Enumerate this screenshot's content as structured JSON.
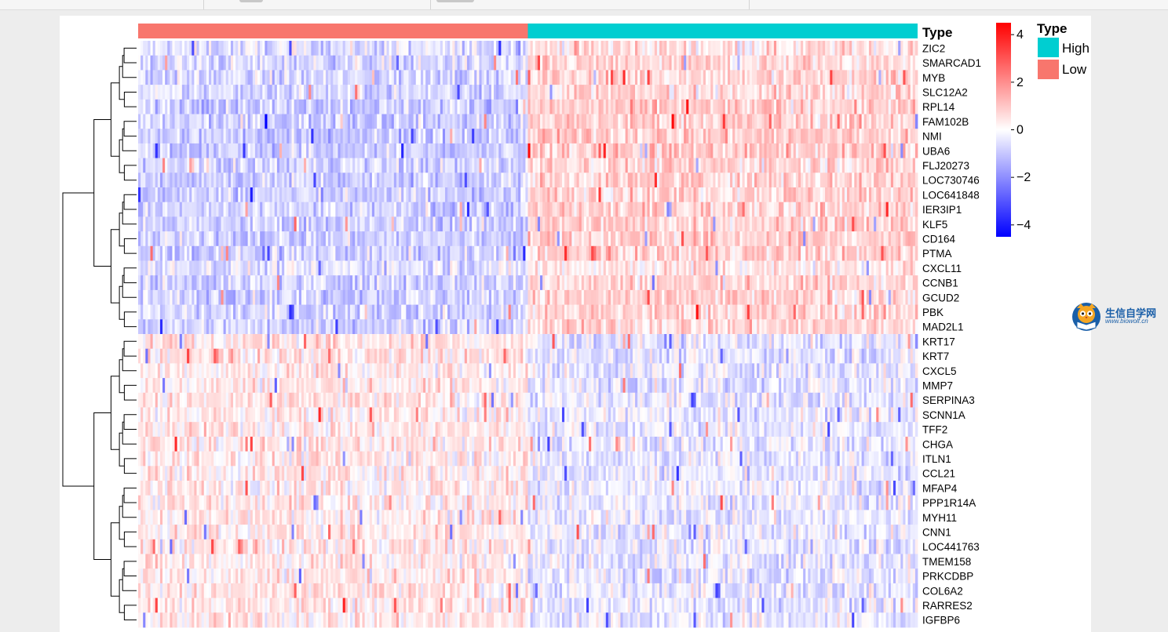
{
  "chart_data": {
    "type": "heatmap",
    "title": "",
    "column_annotation": {
      "title": "Type",
      "groups": [
        {
          "name": "Low",
          "color": "#F8766D",
          "fraction": 0.5
        },
        {
          "name": "High",
          "color": "#00CED1",
          "fraction": 0.5
        }
      ]
    },
    "genes": [
      "ZIC2",
      "SMARCAD1",
      "MYB",
      "SLC12A2",
      "RPL14",
      "FAM102B",
      "NMI",
      "UBA6",
      "FLJ20273",
      "LOC730746",
      "LOC641848",
      "IER3IP1",
      "KLF5",
      "CD164",
      "PTMA",
      "CXCL11",
      "CCNB1",
      "GCUD2",
      "PBK",
      "MAD2L1",
      "KRT17",
      "KRT7",
      "CXCL5",
      "MMP7",
      "SERPINA3",
      "SCNN1A",
      "TFF2",
      "CHGA",
      "ITLN1",
      "CCL21",
      "MFAP4",
      "PPP1R14A",
      "MYH11",
      "CNN1",
      "LOC441763",
      "TMEM158",
      "PRKCDBP",
      "COL6A2",
      "RARRES2",
      "IGFBP6"
    ],
    "row_trend": [
      0.6,
      0.7,
      0.8,
      0.7,
      0.9,
      0.9,
      1.0,
      1.0,
      0.8,
      0.9,
      0.9,
      0.9,
      0.9,
      0.9,
      0.9,
      0.5,
      0.8,
      0.8,
      0.8,
      0.8,
      -0.5,
      -0.5,
      -0.4,
      -0.4,
      -0.4,
      -0.3,
      -0.4,
      -0.4,
      -0.4,
      -0.4,
      -0.4,
      -0.4,
      -0.4,
      -0.4,
      -0.4,
      -0.4,
      -0.4,
      -0.4,
      -0.4,
      -0.4
    ],
    "color_scale": {
      "min": -4.5,
      "max": 4.5,
      "low_color": "#0000FF",
      "mid_color": "#FFFFFF",
      "high_color": "#FF0000",
      "ticks": [
        4,
        2,
        0,
        -2,
        -4
      ],
      "tick_labels": [
        "4",
        "2",
        "0",
        "−2",
        "−4"
      ]
    },
    "dendrogram": "rows clustered (left side)"
  },
  "watermark": {
    "title": "生信自学网",
    "url": "www.biowolf.cn",
    "icon": "owl-book-icon"
  }
}
